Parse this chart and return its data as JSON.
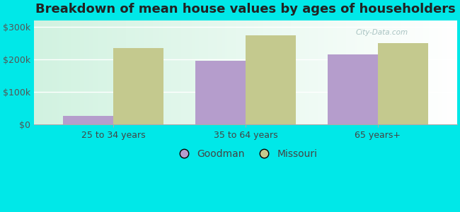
{
  "title": "Breakdown of mean house values by ages of householders",
  "categories": [
    "25 to 34 years",
    "35 to 64 years",
    "65 years+"
  ],
  "goodman_values": [
    25000,
    195000,
    215000
  ],
  "missouri_values": [
    235000,
    275000,
    250000
  ],
  "goodman_color": "#b59dcc",
  "missouri_color": "#c4c98e",
  "background_color": "#00e8e8",
  "ylim": [
    0,
    320000
  ],
  "yticks": [
    0,
    100000,
    200000,
    300000
  ],
  "ytick_labels": [
    "$0",
    "$100k",
    "$200k",
    "$300k"
  ],
  "bar_width": 0.38,
  "legend_labels": [
    "Goodman",
    "Missouri"
  ],
  "title_fontsize": 13,
  "tick_fontsize": 9,
  "legend_fontsize": 10,
  "watermark": "City-Data.com"
}
